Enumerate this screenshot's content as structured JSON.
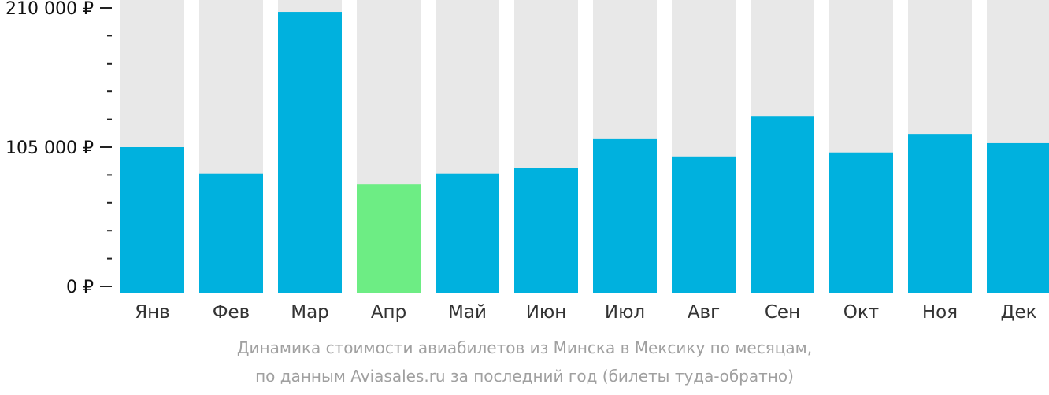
{
  "chart_data": {
    "type": "bar",
    "categories": [
      "Янв",
      "Фев",
      "Мар",
      "Апр",
      "Май",
      "Июн",
      "Июл",
      "Авг",
      "Сен",
      "Окт",
      "Ноя",
      "Дек"
    ],
    "values": [
      105000,
      85000,
      207000,
      77000,
      85000,
      89000,
      111000,
      98000,
      128000,
      101000,
      115000,
      108000
    ],
    "ylim": [
      0,
      210000
    ],
    "yticks": [
      {
        "value": 0,
        "label": "0 ₽"
      },
      {
        "value": 105000,
        "label": "105 000 ₽"
      },
      {
        "value": 210000,
        "label": "210 000 ₽"
      }
    ],
    "minor_tick_step": 21000,
    "highlight_category": "Апр",
    "colors": {
      "bar": "#00b1de",
      "highlight": "#6ded84",
      "track": "#e8e8e8",
      "axis": "#222222"
    },
    "caption_line1": "Динамика стоимости авиабилетов из Минска в Мексику по месяцам,",
    "caption_line2": "по данным Aviasales.ru за последний год (билеты туда-обратно)"
  }
}
